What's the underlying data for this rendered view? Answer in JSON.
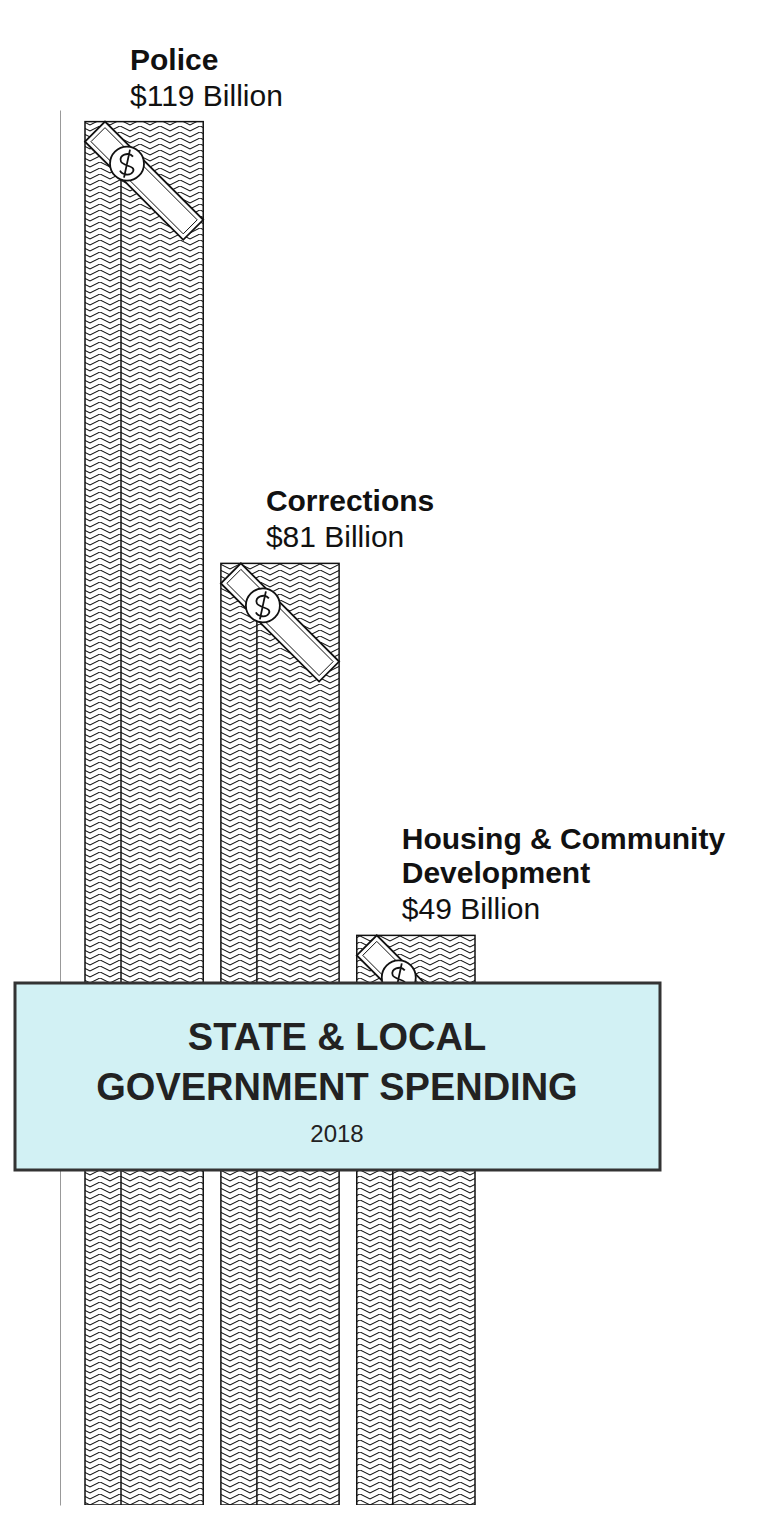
{
  "chart_data": {
    "type": "bar",
    "title": "STATE & LOCAL GOVERNMENT SPENDING",
    "subtitle": "2018",
    "categories": [
      "Police",
      "Corrections",
      "Housing & Community Development"
    ],
    "values": [
      119,
      81,
      49
    ],
    "value_labels": [
      "$119 Billion",
      "$81 Billion",
      "$49 Billion"
    ],
    "data_labels": true,
    "tick_labels": false,
    "color": "#ffffff",
    "ylim": [
      0,
      120
    ]
  }
}
